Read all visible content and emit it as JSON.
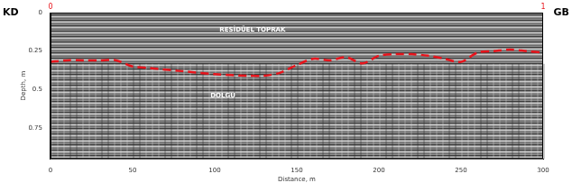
{
  "chart_data": {
    "type": "line",
    "x_label": "Distance, m",
    "y_label": "Depth, m",
    "side_labels": {
      "left": "KD",
      "right": "GB"
    },
    "top_labels": [
      "0",
      "1"
    ],
    "annotations": [
      "RESİDÜEL TOPRAK",
      "DOLGU"
    ],
    "x": [
      0,
      10,
      20,
      30,
      40,
      50,
      60,
      80,
      100,
      120,
      130,
      140,
      150,
      160,
      170,
      180,
      190,
      200,
      210,
      220,
      230,
      240,
      250,
      260,
      270,
      280,
      290,
      300
    ],
    "values": [
      0.32,
      0.31,
      0.31,
      0.31,
      0.31,
      0.35,
      0.36,
      0.38,
      0.4,
      0.41,
      0.41,
      0.39,
      0.34,
      0.3,
      0.31,
      0.29,
      0.33,
      0.28,
      0.27,
      0.27,
      0.28,
      0.3,
      0.32,
      0.26,
      0.25,
      0.24,
      0.25,
      0.26
    ],
    "color": "#e8141c",
    "line_style": "dashed",
    "marker": "none",
    "xlim": [
      0,
      300
    ],
    "xticks": [
      0,
      50,
      100,
      150,
      200,
      250,
      300
    ],
    "ylim": [
      0,
      0.95
    ],
    "yticks": [
      0,
      0.25,
      0.5,
      0.75
    ],
    "grid": false
  }
}
